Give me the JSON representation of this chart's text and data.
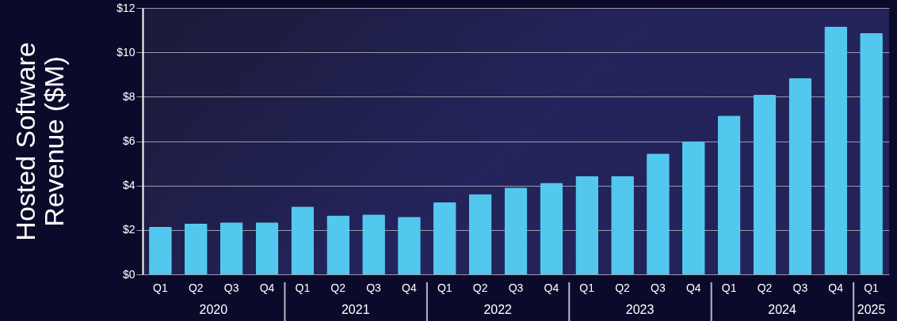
{
  "chart_data": {
    "type": "bar",
    "ylabel": "Hosted Software Revenue ($M)",
    "categories": [
      "Q1",
      "Q2",
      "Q3",
      "Q4",
      "Q1",
      "Q2",
      "Q3",
      "Q4",
      "Q1",
      "Q2",
      "Q3",
      "Q4",
      "Q1",
      "Q2",
      "Q3",
      "Q4",
      "Q1",
      "Q2",
      "Q3",
      "Q4",
      "Q1"
    ],
    "values": [
      2.14,
      2.29,
      2.34,
      2.34,
      3.05,
      2.65,
      2.7,
      2.59,
      3.25,
      3.61,
      3.91,
      4.12,
      4.42,
      4.42,
      5.44,
      5.98,
      7.15,
      8.08,
      8.83,
      11.16,
      10.86
    ],
    "color": "#53c8ee",
    "ylim": [
      0,
      12
    ],
    "yticks": [
      {
        "value": 0,
        "label": "$0"
      },
      {
        "value": 2,
        "label": "$2"
      },
      {
        "value": 4,
        "label": "$4"
      },
      {
        "value": 6,
        "label": "$6"
      },
      {
        "value": 8,
        "label": "$8"
      },
      {
        "value": 10,
        "label": "$10"
      },
      {
        "value": 12,
        "label": "$12"
      }
    ],
    "grid": "y",
    "annotations": [
      "2020",
      "2021",
      "2022",
      "2023",
      "2024",
      "2025"
    ]
  }
}
